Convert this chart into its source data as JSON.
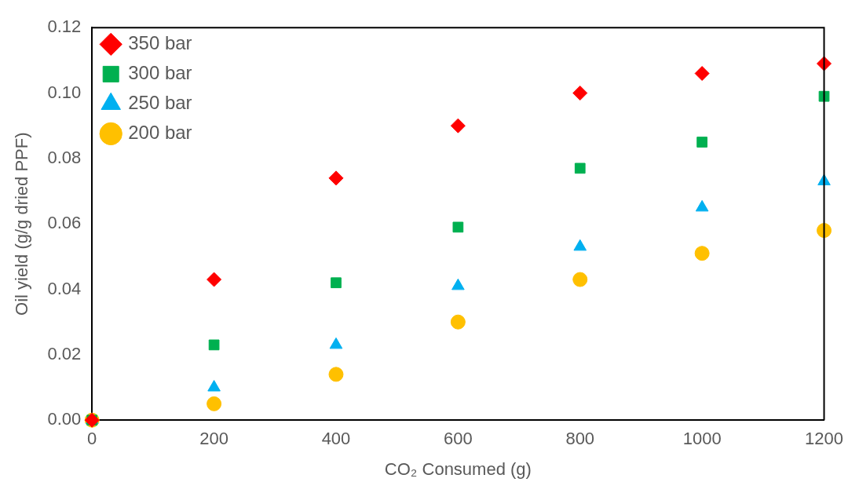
{
  "chart_data": {
    "type": "scatter",
    "xlabel": "CO₂ Consumed (g)",
    "ylabel": "Oil yield (g/g dried PPF)",
    "x": [
      0,
      200,
      400,
      600,
      800,
      1000,
      1200
    ],
    "series": [
      {
        "name": "350 bar",
        "color": "#ff0000",
        "marker": "diamond",
        "values": [
          0,
          0.043,
          0.074,
          0.09,
          0.1,
          0.106,
          0.109
        ]
      },
      {
        "name": "300 bar",
        "color": "#00b050",
        "marker": "square",
        "values": [
          0,
          0.023,
          0.042,
          0.059,
          0.077,
          0.085,
          0.099
        ]
      },
      {
        "name": "250 bar",
        "color": "#00b0f0",
        "marker": "triangle",
        "values": [
          0,
          0.01,
          0.023,
          0.041,
          0.053,
          0.065,
          0.073
        ]
      },
      {
        "name": "200 bar",
        "color": "#ffc000",
        "marker": "circle",
        "values": [
          0,
          0.005,
          0.014,
          0.03,
          0.043,
          0.051,
          0.058
        ]
      }
    ],
    "xlim": [
      0,
      1200
    ],
    "xticks": [
      0,
      200,
      400,
      600,
      800,
      1000,
      1200
    ],
    "ylim": [
      0,
      0.12
    ],
    "yticks": [
      {
        "value": 0,
        "label": "0.00"
      },
      {
        "value": 0.02,
        "label": "0.02"
      },
      {
        "value": 0.04,
        "label": "0.04"
      },
      {
        "value": 0.06,
        "label": "0.06"
      },
      {
        "value": 0.08,
        "label": "0.08"
      },
      {
        "value": 0.1,
        "label": "0.10"
      },
      {
        "value": 0.12,
        "label": "0.12"
      }
    ],
    "grid": false,
    "legend": "top left"
  }
}
